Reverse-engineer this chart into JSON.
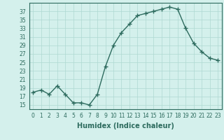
{
  "x": [
    0,
    1,
    2,
    3,
    4,
    5,
    6,
    7,
    8,
    9,
    10,
    11,
    12,
    13,
    14,
    15,
    16,
    17,
    18,
    19,
    20,
    21,
    22,
    23
  ],
  "y": [
    18,
    18.5,
    17.5,
    19.5,
    17.5,
    15.5,
    15.5,
    15,
    17.5,
    24,
    29,
    32,
    34,
    36,
    36.5,
    37,
    37.5,
    38,
    37.5,
    33,
    29.5,
    27.5,
    26,
    25.5
  ],
  "line_color": "#2d6b5e",
  "marker": "+",
  "marker_size": 4,
  "bg_color": "#d4f0ec",
  "grid_color": "#aed8d2",
  "xlabel": "Humidex (Indice chaleur)",
  "ylim": [
    14,
    39
  ],
  "xlim": [
    -0.5,
    23.5
  ],
  "yticks": [
    15,
    17,
    19,
    21,
    23,
    25,
    27,
    29,
    31,
    33,
    35,
    37
  ],
  "xticks": [
    0,
    1,
    2,
    3,
    4,
    5,
    6,
    7,
    8,
    9,
    10,
    11,
    12,
    13,
    14,
    15,
    16,
    17,
    18,
    19,
    20,
    21,
    22,
    23
  ],
  "tick_label_fontsize": 5.5,
  "xlabel_fontsize": 7,
  "line_width": 1.0,
  "marker_linewidth": 1.0
}
